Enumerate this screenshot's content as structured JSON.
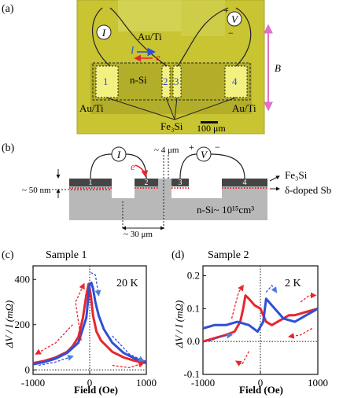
{
  "panel_a": {
    "tag": "(a)",
    "current_symbol": "I",
    "voltage_symbol": "V",
    "plus": "+",
    "minus": "−",
    "contact_top": "Au/Ti",
    "contact_bl": "Au/Ti",
    "contact_br": "Au/Ti",
    "current_arrow_label": "I",
    "electron_label": "e",
    "channel": "n-Si",
    "pad1": "1",
    "pad2": "2",
    "pad3": "3",
    "pad4": "4",
    "material": "Fe₃Si",
    "scale": "100 μm",
    "field": "B"
  },
  "panel_b": {
    "tag": "(b)",
    "current_symbol": "I",
    "voltage_symbol": "V",
    "plus": "+",
    "minus": "−",
    "electron_label": "e",
    "gap_top": "~ 4 μm",
    "thickness": "~ 50 nm",
    "gap_bottom": "~ 30 μm",
    "pad1": "1",
    "pad2": "2",
    "pad3": "3",
    "pad4": "4",
    "layer_fe": "Fe₃Si",
    "layer_sb": "δ-doped Sb",
    "substrate": "n-Si~ 10¹⁵cm³"
  },
  "chart_data": [
    {
      "type": "line",
      "panel": "(c)",
      "title": "Sample 1",
      "annotation": "20 K",
      "xlabel": "Field (Oe)",
      "ylabel": "ΔV / I (mΩ)",
      "xlim": [
        -1000,
        1000
      ],
      "ylim": [
        -20,
        460
      ],
      "xticks": [
        "-1000",
        "0",
        "1000"
      ],
      "yticks": [
        "0",
        "200",
        "400"
      ],
      "series": [
        {
          "color": "#e8262d",
          "x": [
            -1000,
            -800,
            -600,
            -400,
            -300,
            -200,
            -120,
            -60,
            -20,
            0,
            20,
            60,
            120,
            200,
            400,
            600,
            800,
            1000
          ],
          "y": [
            30,
            40,
            55,
            80,
            105,
            145,
            230,
            330,
            380,
            360,
            330,
            240,
            170,
            130,
            80,
            55,
            40,
            30
          ]
        },
        {
          "color": "#2f4fd8",
          "x": [
            -1000,
            -800,
            -600,
            -400,
            -200,
            -60,
            0,
            30,
            60,
            100,
            160,
            250,
            400,
            600,
            800,
            1000
          ],
          "y": [
            25,
            35,
            50,
            75,
            120,
            230,
            380,
            385,
            360,
            300,
            240,
            180,
            120,
            75,
            50,
            35
          ]
        }
      ]
    },
    {
      "type": "line",
      "panel": "(d)",
      "title": "Sample 2",
      "annotation": "2 K",
      "xlabel": "Field (Oe)",
      "ylabel": "ΔV / I (mΩ)",
      "xlim": [
        -1000,
        1000
      ],
      "ylim": [
        -0.1,
        0.23
      ],
      "xticks": [
        "-1000",
        "0",
        "1000"
      ],
      "yticks": [
        "-0.1",
        "0.0",
        "0.1",
        "0.2"
      ],
      "series": [
        {
          "color": "#e8262d",
          "x": [
            -1000,
            -800,
            -600,
            -450,
            -350,
            -300,
            -260,
            -200,
            -100,
            0,
            100,
            200,
            300,
            400,
            500,
            600,
            800,
            1000
          ],
          "y": [
            0.0,
            0.01,
            0.02,
            0.03,
            0.06,
            0.1,
            0.14,
            0.13,
            0.11,
            0.1,
            0.06,
            0.05,
            0.06,
            0.07,
            0.08,
            0.08,
            0.09,
            0.1
          ]
        },
        {
          "color": "#2f4fd8",
          "x": [
            -1000,
            -800,
            -600,
            -400,
            -200,
            -50,
            50,
            100,
            150,
            200,
            300,
            400,
            600,
            800,
            1000
          ],
          "y": [
            0.04,
            0.05,
            0.05,
            0.06,
            0.05,
            0.03,
            0.06,
            0.13,
            0.12,
            0.11,
            0.09,
            0.07,
            0.06,
            0.08,
            0.1
          ]
        }
      ]
    }
  ]
}
